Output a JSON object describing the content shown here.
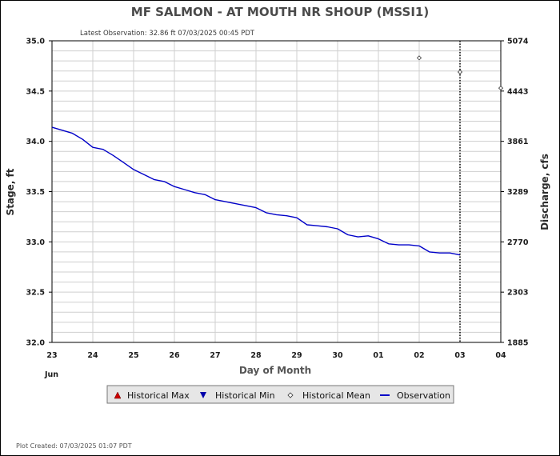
{
  "chart_data": {
    "type": "line",
    "title": "MF SALMON - AT MOUTH NR SHOUP  (MSSI1)",
    "subtitle": "Latest Observation: 32.86 ft 07/03/2025 00:45 PDT",
    "xlabel": "Day of Month",
    "ylabel": "Stage, ft",
    "y2label": "Discharge, cfs",
    "footer": "Plot Created: 07/03/2025 01:07 PDT",
    "month_label": "Jun",
    "x_ticks": [
      "23",
      "24",
      "25",
      "26",
      "27",
      "28",
      "29",
      "30",
      "01",
      "02",
      "03",
      "04"
    ],
    "ylim": [
      32.0,
      35.0
    ],
    "y_ticks": [
      "32.0",
      "32.5",
      "33.0",
      "33.5",
      "34.0",
      "34.5",
      "35.0"
    ],
    "y2_ticks": [
      "1885",
      "2303",
      "2770",
      "3289",
      "3861",
      "4443",
      "5074"
    ],
    "grid": true,
    "now_marker_x": 10.0,
    "series": [
      {
        "name": "Observation",
        "color": "#0000c8",
        "x": [
          0.0,
          0.25,
          0.5,
          0.75,
          1.0,
          1.25,
          1.5,
          1.75,
          2.0,
          2.25,
          2.5,
          2.75,
          3.0,
          3.25,
          3.5,
          3.75,
          4.0,
          4.25,
          4.5,
          4.75,
          5.0,
          5.25,
          5.5,
          5.75,
          6.0,
          6.25,
          6.5,
          6.75,
          7.0,
          7.25,
          7.5,
          7.75,
          8.0,
          8.25,
          8.5,
          8.75,
          9.0,
          9.25,
          9.5,
          9.75,
          10.0
        ],
        "values": [
          34.14,
          34.11,
          34.08,
          34.02,
          33.94,
          33.92,
          33.86,
          33.79,
          33.72,
          33.67,
          33.62,
          33.6,
          33.55,
          33.52,
          33.49,
          33.47,
          33.42,
          33.4,
          33.38,
          33.36,
          33.34,
          33.29,
          33.27,
          33.26,
          33.24,
          33.17,
          33.16,
          33.15,
          33.13,
          33.07,
          33.05,
          33.06,
          33.03,
          32.98,
          32.97,
          32.97,
          32.96,
          32.9,
          32.89,
          32.89,
          32.87
        ]
      },
      {
        "name": "Historical Mean",
        "x": [
          9.0,
          10.0,
          11.0
        ],
        "values": [
          34.83,
          34.69,
          34.53
        ]
      }
    ],
    "legend": {
      "placement": "bottom",
      "items": [
        "Historical Max",
        "Historical Min",
        "Historical Mean",
        "Observation"
      ]
    }
  }
}
